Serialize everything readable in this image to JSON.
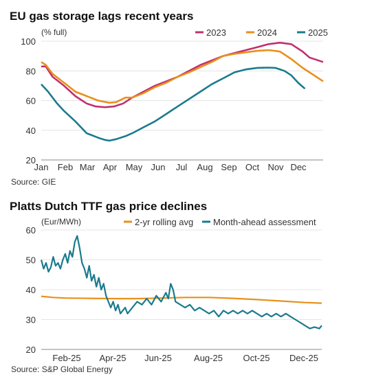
{
  "chart_data": [
    {
      "type": "line",
      "title": "EU gas storage lags recent years",
      "ylabel": "(% full)",
      "ylim": [
        20,
        100
      ],
      "yticks": [
        20,
        40,
        60,
        80,
        100
      ],
      "categories": [
        "Jan",
        "Feb",
        "Mar",
        "Apr",
        "May",
        "Jun",
        "Jul",
        "Aug",
        "Sep",
        "Oct",
        "Nov",
        "Dec"
      ],
      "grid": "horizontal",
      "legend": "top-right",
      "source": "Source: GIE",
      "series": [
        {
          "name": "2023",
          "color": "#c0306e",
          "values": [
            [
              1,
              83
            ],
            [
              1.2,
              83
            ],
            [
              1.5,
              76
            ],
            [
              2,
              70
            ],
            [
              2.5,
              63
            ],
            [
              3,
              58
            ],
            [
              3.4,
              56
            ],
            [
              3.8,
              55.5
            ],
            [
              4.2,
              56
            ],
            [
              4.6,
              58
            ],
            [
              5,
              62
            ],
            [
              5.5,
              66
            ],
            [
              6,
              70
            ],
            [
              6.5,
              73
            ],
            [
              7,
              76
            ],
            [
              7.5,
              80
            ],
            [
              8,
              84
            ],
            [
              8.5,
              87
            ],
            [
              9,
              90
            ],
            [
              9.5,
              92
            ],
            [
              10,
              94
            ],
            [
              10.5,
              96
            ],
            [
              11,
              98
            ],
            [
              11.5,
              99
            ],
            [
              12,
              98
            ],
            [
              12.5,
              93
            ],
            [
              12.8,
              89
            ],
            [
              13.4,
              86
            ]
          ]
        },
        {
          "name": "2024",
          "color": "#e8901a",
          "values": [
            [
              1,
              86
            ],
            [
              1.2,
              84
            ],
            [
              1.5,
              78
            ],
            [
              2,
              72
            ],
            [
              2.5,
              66
            ],
            [
              3,
              63
            ],
            [
              3.5,
              60
            ],
            [
              4,
              58.5
            ],
            [
              4.3,
              59
            ],
            [
              4.7,
              62
            ],
            [
              5,
              62
            ],
            [
              5.5,
              65
            ],
            [
              6,
              69
            ],
            [
              6.5,
              72
            ],
            [
              7,
              76
            ],
            [
              7.5,
              79
            ],
            [
              8,
              82.5
            ],
            [
              8.5,
              86
            ],
            [
              9,
              90
            ],
            [
              9.5,
              91.5
            ],
            [
              10,
              92.5
            ],
            [
              10.5,
              93.5
            ],
            [
              11,
              94
            ],
            [
              11.5,
              93
            ],
            [
              12,
              88
            ],
            [
              12.5,
              82
            ],
            [
              13,
              77
            ],
            [
              13.4,
              73
            ]
          ]
        },
        {
          "name": "2025",
          "color": "#1a7a8e",
          "values": [
            [
              1,
              71
            ],
            [
              1.3,
              66
            ],
            [
              1.7,
              58
            ],
            [
              2,
              53
            ],
            [
              2.5,
              46
            ],
            [
              3,
              38
            ],
            [
              3.5,
              35
            ],
            [
              3.8,
              33.5
            ],
            [
              4,
              33
            ],
            [
              4.3,
              34
            ],
            [
              4.7,
              36
            ],
            [
              5,
              38
            ],
            [
              5.5,
              42
            ],
            [
              6,
              46
            ],
            [
              6.5,
              51
            ],
            [
              7,
              56
            ],
            [
              7.5,
              61
            ],
            [
              8,
              66
            ],
            [
              8.5,
              71
            ],
            [
              9,
              75
            ],
            [
              9.5,
              79
            ],
            [
              10,
              81
            ],
            [
              10.5,
              82
            ],
            [
              11,
              82.2
            ],
            [
              11.3,
              82
            ],
            [
              11.7,
              80
            ],
            [
              12,
              77
            ],
            [
              12.3,
              72
            ],
            [
              12.6,
              68
            ]
          ]
        }
      ]
    },
    {
      "type": "line",
      "title": "Platts Dutch TTF gas price declines",
      "ylabel": "(Eur/MWh)",
      "ylim": [
        20,
        60
      ],
      "yticks": [
        20,
        30,
        40,
        50,
        60
      ],
      "xticks": [
        "Feb-25",
        "Apr-25",
        "Jun-25",
        "Aug-25",
        "Oct-25",
        "Dec-25"
      ],
      "grid": "horizontal",
      "legend": "top-right",
      "source": "Source: S&P Global Energy",
      "series": [
        {
          "name": "2-yr rolling avg",
          "color": "#e8901a",
          "values": [
            [
              0,
              37.8
            ],
            [
              0.5,
              37.4
            ],
            [
              1,
              37.2
            ],
            [
              2,
              37.1
            ],
            [
              3,
              37.0
            ],
            [
              4,
              37.0
            ],
            [
              5,
              37.2
            ],
            [
              6,
              37.4
            ],
            [
              7,
              37.4
            ],
            [
              8,
              37.1
            ],
            [
              9,
              36.7
            ],
            [
              10,
              36.2
            ],
            [
              11,
              35.7
            ],
            [
              11.7,
              35.5
            ]
          ]
        },
        {
          "name": "Month-ahead assessment",
          "color": "#1a7a8e",
          "values": [
            [
              0,
              50
            ],
            [
              0.1,
              47
            ],
            [
              0.2,
              49
            ],
            [
              0.3,
              46
            ],
            [
              0.4,
              47.5
            ],
            [
              0.5,
              51
            ],
            [
              0.6,
              48
            ],
            [
              0.7,
              49
            ],
            [
              0.8,
              47
            ],
            [
              0.9,
              50
            ],
            [
              1.0,
              52
            ],
            [
              1.1,
              49
            ],
            [
              1.2,
              53
            ],
            [
              1.3,
              51
            ],
            [
              1.4,
              56
            ],
            [
              1.5,
              58
            ],
            [
              1.6,
              54
            ],
            [
              1.7,
              49
            ],
            [
              1.8,
              47
            ],
            [
              1.9,
              44
            ],
            [
              2.0,
              48
            ],
            [
              2.1,
              43
            ],
            [
              2.2,
              45
            ],
            [
              2.3,
              41
            ],
            [
              2.4,
              44
            ],
            [
              2.5,
              40
            ],
            [
              2.6,
              42
            ],
            [
              2.7,
              38
            ],
            [
              2.8,
              36
            ],
            [
              2.9,
              34
            ],
            [
              3.0,
              36
            ],
            [
              3.1,
              33
            ],
            [
              3.2,
              35
            ],
            [
              3.3,
              32
            ],
            [
              3.4,
              33
            ],
            [
              3.5,
              34
            ],
            [
              3.6,
              32
            ],
            [
              3.8,
              34
            ],
            [
              4.0,
              36
            ],
            [
              4.2,
              35
            ],
            [
              4.4,
              37
            ],
            [
              4.6,
              35
            ],
            [
              4.8,
              38
            ],
            [
              5.0,
              36
            ],
            [
              5.2,
              39
            ],
            [
              5.3,
              37
            ],
            [
              5.4,
              42
            ],
            [
              5.5,
              40
            ],
            [
              5.6,
              36
            ],
            [
              5.8,
              35
            ],
            [
              6.0,
              34
            ],
            [
              6.2,
              35
            ],
            [
              6.4,
              33
            ],
            [
              6.6,
              34
            ],
            [
              6.8,
              33
            ],
            [
              7.0,
              32
            ],
            [
              7.2,
              33
            ],
            [
              7.4,
              31
            ],
            [
              7.6,
              33
            ],
            [
              7.8,
              32
            ],
            [
              8.0,
              33
            ],
            [
              8.2,
              32
            ],
            [
              8.4,
              33
            ],
            [
              8.6,
              32
            ],
            [
              8.8,
              33
            ],
            [
              9.0,
              32
            ],
            [
              9.2,
              31
            ],
            [
              9.4,
              32
            ],
            [
              9.6,
              31
            ],
            [
              9.8,
              32
            ],
            [
              10.0,
              31
            ],
            [
              10.2,
              32
            ],
            [
              10.4,
              31
            ],
            [
              10.6,
              30
            ],
            [
              10.8,
              29
            ],
            [
              11.0,
              28
            ],
            [
              11.2,
              27
            ],
            [
              11.4,
              27.5
            ],
            [
              11.6,
              27
            ],
            [
              11.7,
              28
            ]
          ]
        }
      ]
    }
  ]
}
